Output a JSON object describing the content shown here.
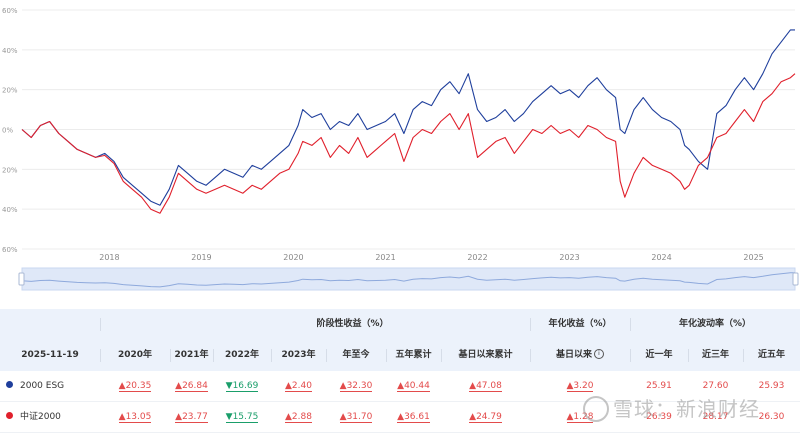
{
  "chart_data": {
    "type": "line",
    "y_ticks": [
      "60%",
      "40%",
      "20%",
      "0%",
      "20%",
      "40%",
      "60%"
    ],
    "y_tick_values": [
      60,
      40,
      20,
      0,
      -20,
      -40,
      -60
    ],
    "ylim": [
      -60,
      60
    ],
    "x_ticks": [
      "2018",
      "2019",
      "2020",
      "2021",
      "2022",
      "2023",
      "2024",
      "2025"
    ],
    "x_tick_values": [
      2018,
      2019,
      2020,
      2021,
      2022,
      2023,
      2024,
      2025
    ],
    "xlim": [
      2017.55,
      2025.95
    ],
    "colors": {
      "series_1": "#1f3f9c",
      "series_2": "#e0202c",
      "navigator": "#8ea9dc"
    },
    "series": [
      {
        "name": "2000 ESG",
        "color": "#1f3f9c",
        "x": [
          2017.55,
          2017.65,
          2017.75,
          2017.85,
          2017.95,
          2018.05,
          2018.15,
          2018.25,
          2018.35,
          2018.45,
          2018.55,
          2018.65,
          2018.75,
          2018.85,
          2018.95,
          2019.05,
          2019.15,
          2019.25,
          2019.35,
          2019.45,
          2019.55,
          2019.65,
          2019.75,
          2019.85,
          2019.95,
          2020.05,
          2020.15,
          2020.25,
          2020.35,
          2020.45,
          2020.55,
          2020.6,
          2020.7,
          2020.8,
          2020.9,
          2021.0,
          2021.1,
          2021.2,
          2021.3,
          2021.4,
          2021.5,
          2021.6,
          2021.7,
          2021.8,
          2021.9,
          2022.0,
          2022.1,
          2022.2,
          2022.3,
          2022.4,
          2022.5,
          2022.6,
          2022.7,
          2022.8,
          2022.9,
          2023.0,
          2023.1,
          2023.2,
          2023.3,
          2023.4,
          2023.5,
          2023.6,
          2023.7,
          2023.8,
          2023.9,
          2024.0,
          2024.05,
          2024.1,
          2024.2,
          2024.3,
          2024.4,
          2024.5,
          2024.6,
          2024.7,
          2024.75,
          2024.8,
          2024.9,
          2025.0,
          2025.1,
          2025.2,
          2025.3,
          2025.4,
          2025.5,
          2025.6,
          2025.7,
          2025.8,
          2025.9,
          2025.95
        ],
        "values": [
          0,
          -4,
          2,
          4,
          -2,
          -6,
          -10,
          -12,
          -14,
          -12,
          -16,
          -24,
          -28,
          -32,
          -36,
          -38,
          -30,
          -18,
          -22,
          -26,
          -28,
          -24,
          -20,
          -22,
          -24,
          -18,
          -20,
          -16,
          -12,
          -8,
          2,
          10,
          6,
          8,
          0,
          4,
          2,
          8,
          0,
          2,
          4,
          8,
          -2,
          10,
          14,
          12,
          20,
          24,
          18,
          28,
          10,
          4,
          6,
          10,
          4,
          8,
          14,
          18,
          22,
          18,
          20,
          16,
          22,
          26,
          20,
          16,
          0,
          -2,
          10,
          16,
          10,
          6,
          4,
          0,
          -8,
          -10,
          -16,
          -20,
          8,
          12,
          20,
          26,
          20,
          28,
          38,
          44,
          50,
          50
        ]
      },
      {
        "name": "中证2000",
        "color": "#e0202c",
        "x": [
          2017.55,
          2017.65,
          2017.75,
          2017.85,
          2017.95,
          2018.05,
          2018.15,
          2018.25,
          2018.35,
          2018.45,
          2018.55,
          2018.65,
          2018.75,
          2018.85,
          2018.95,
          2019.05,
          2019.15,
          2019.25,
          2019.35,
          2019.45,
          2019.55,
          2019.65,
          2019.75,
          2019.85,
          2019.95,
          2020.05,
          2020.15,
          2020.25,
          2020.35,
          2020.45,
          2020.55,
          2020.6,
          2020.7,
          2020.8,
          2020.9,
          2021.0,
          2021.1,
          2021.2,
          2021.3,
          2021.4,
          2021.5,
          2021.6,
          2021.7,
          2021.8,
          2021.9,
          2022.0,
          2022.1,
          2022.2,
          2022.3,
          2022.4,
          2022.5,
          2022.6,
          2022.7,
          2022.8,
          2022.9,
          2023.0,
          2023.1,
          2023.2,
          2023.3,
          2023.4,
          2023.5,
          2023.6,
          2023.7,
          2023.8,
          2023.9,
          2024.0,
          2024.05,
          2024.1,
          2024.2,
          2024.3,
          2024.4,
          2024.5,
          2024.6,
          2024.7,
          2024.75,
          2024.8,
          2024.9,
          2025.0,
          2025.1,
          2025.2,
          2025.3,
          2025.4,
          2025.5,
          2025.6,
          2025.7,
          2025.8,
          2025.9,
          2025.95
        ],
        "values": [
          0,
          -4,
          2,
          4,
          -2,
          -6,
          -10,
          -12,
          -14,
          -13,
          -17,
          -26,
          -30,
          -34,
          -40,
          -42,
          -34,
          -22,
          -26,
          -30,
          -32,
          -30,
          -28,
          -30,
          -32,
          -28,
          -30,
          -26,
          -22,
          -20,
          -12,
          -6,
          -8,
          -4,
          -14,
          -8,
          -12,
          -4,
          -14,
          -10,
          -6,
          -2,
          -16,
          -4,
          0,
          -2,
          4,
          8,
          0,
          8,
          -14,
          -10,
          -6,
          -4,
          -12,
          -6,
          0,
          -2,
          2,
          -2,
          0,
          -4,
          2,
          0,
          -4,
          -6,
          -26,
          -34,
          -22,
          -14,
          -18,
          -20,
          -22,
          -26,
          -30,
          -28,
          -18,
          -14,
          -4,
          -2,
          4,
          10,
          4,
          14,
          18,
          24,
          26,
          28
        ]
      }
    ]
  },
  "table": {
    "header_group1": "阶段性收益（%）",
    "header_group2": "年化收益（%）",
    "header_group3": "年化波动率（%）",
    "date_label": "2025-11-19",
    "col_2020": "2020年",
    "col_2021": "2021年",
    "col_2022": "2022年",
    "col_2023": "2023年",
    "col_ytd": "年至今",
    "col_5y": "五年累计",
    "col_since_base": "基日以来累计",
    "col_ann_since": "基日以来",
    "info_glyph": "i",
    "col_1y": "近一年",
    "col_3y": "近三年",
    "col_5y_vol": "近五年",
    "rows": [
      {
        "name": "2000 ESG",
        "dot_color": "#1f3f9c",
        "v2020": "▲20.35",
        "v2021": "▲26.84",
        "v2022": "▼16.69",
        "v2023": "▲2.40",
        "ytd": "▲32.30",
        "five": "▲40.44",
        "since": "▲47.08",
        "ann": "▲3.20",
        "vol1": "25.91",
        "vol3": "27.60",
        "vol5": "25.93"
      },
      {
        "name": "中证2000",
        "dot_color": "#e0202c",
        "v2020": "▲13.05",
        "v2021": "▲23.77",
        "v2022": "▼15.75",
        "v2023": "▲2.88",
        "ytd": "▲31.70",
        "five": "▲36.61",
        "since": "▲24.79",
        "ann": "▲1.28",
        "vol1": "26.39",
        "vol3": "28.17",
        "vol5": "26.30"
      }
    ]
  },
  "watermark": "雪球：新浪财经"
}
